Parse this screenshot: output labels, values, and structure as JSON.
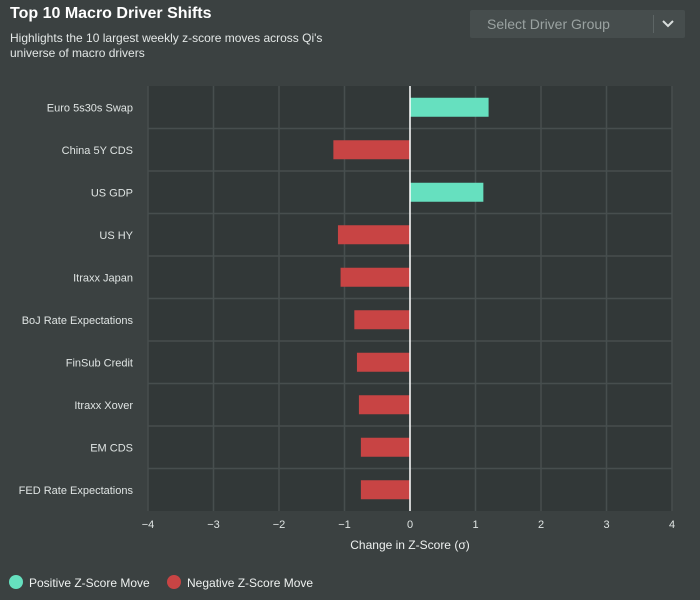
{
  "header": {
    "title": "Top 10 Macro Driver Shifts",
    "subtitle": "Highlights the 10 largest weekly z-score moves across Qi's universe of macro drivers"
  },
  "select": {
    "placeholder": "Select Driver Group"
  },
  "colors": {
    "positive": "#66e0bf",
    "negative": "#c84444",
    "plot_bg": "#323838",
    "grid": "#474e4e",
    "zero_line": "#ffffff"
  },
  "legend": {
    "items": [
      {
        "label": "Positive Z-Score Move",
        "color": "#66e0bf"
      },
      {
        "label": "Negative Z-Score Move",
        "color": "#c84444"
      }
    ]
  },
  "chart_data": {
    "type": "bar",
    "orientation": "horizontal",
    "title": "Top 10 Macro Driver Shifts",
    "subtitle": "Highlights the 10 largest weekly z-score moves across Qi's universe of macro drivers",
    "xlabel": "Change in Z-Score (σ)",
    "ylabel": "",
    "xlim": [
      -4,
      4
    ],
    "xticks": [
      "−4",
      "−3",
      "−2",
      "−1",
      "0",
      "1",
      "2",
      "3",
      "4"
    ],
    "grid": true,
    "legend_position": "bottom-left",
    "categories": [
      "Euro 5s30s Swap",
      "China 5Y CDS",
      "US GDP",
      "US HY",
      "Itraxx Japan",
      "BoJ Rate Expectations",
      "FinSub Credit",
      "Itraxx Xover",
      "EM CDS",
      "FED Rate Expectations"
    ],
    "values": [
      1.2,
      -1.17,
      1.12,
      -1.1,
      -1.06,
      -0.85,
      -0.81,
      -0.78,
      -0.75,
      -0.75
    ]
  }
}
